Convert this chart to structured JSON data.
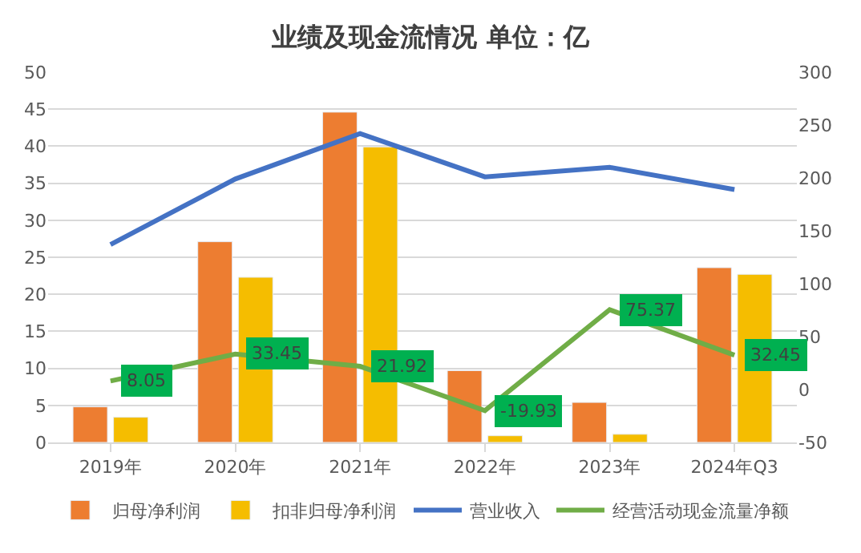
{
  "chart_data": {
    "type": "bar",
    "title": "业绩及现金流情况 单位：亿",
    "categories": [
      "2019年",
      "2020年",
      "2021年",
      "2022年",
      "2023年",
      "2024年Q3"
    ],
    "series": [
      {
        "name": "归母净利润",
        "color": "#ed7d31",
        "values": [
          4.8,
          27.1,
          44.6,
          9.7,
          5.4,
          23.6
        ]
      },
      {
        "name": "扣非归母净利润",
        "color": "#f5bd00",
        "values": [
          3.4,
          22.3,
          39.9,
          0.9,
          1.1,
          22.7
        ]
      },
      {
        "name": "营业收入",
        "type": "line",
        "axis": "y2",
        "color": "#4472c4",
        "values": [
          137,
          199,
          242,
          201,
          210,
          189
        ]
      },
      {
        "name": "经营活动现金流量净额",
        "type": "line",
        "axis": "y2",
        "color": "#70ad47",
        "values": [
          8.05,
          33.45,
          21.92,
          -19.93,
          75.37,
          32.45
        ],
        "value_labels": [
          "8.05",
          "33.45",
          "21.92",
          "-19.93",
          "75.37",
          "32.45"
        ]
      }
    ],
    "ylim": [
      0,
      50
    ],
    "yticks": [
      0,
      5,
      10,
      15,
      20,
      25,
      30,
      35,
      40,
      45,
      50
    ],
    "y2lim": [
      -50,
      300
    ],
    "y2ticks": [
      -50,
      0,
      50,
      100,
      150,
      200,
      250,
      300
    ],
    "grid": "y",
    "legend": "bottom",
    "marker": "none",
    "line_style": "solid"
  }
}
